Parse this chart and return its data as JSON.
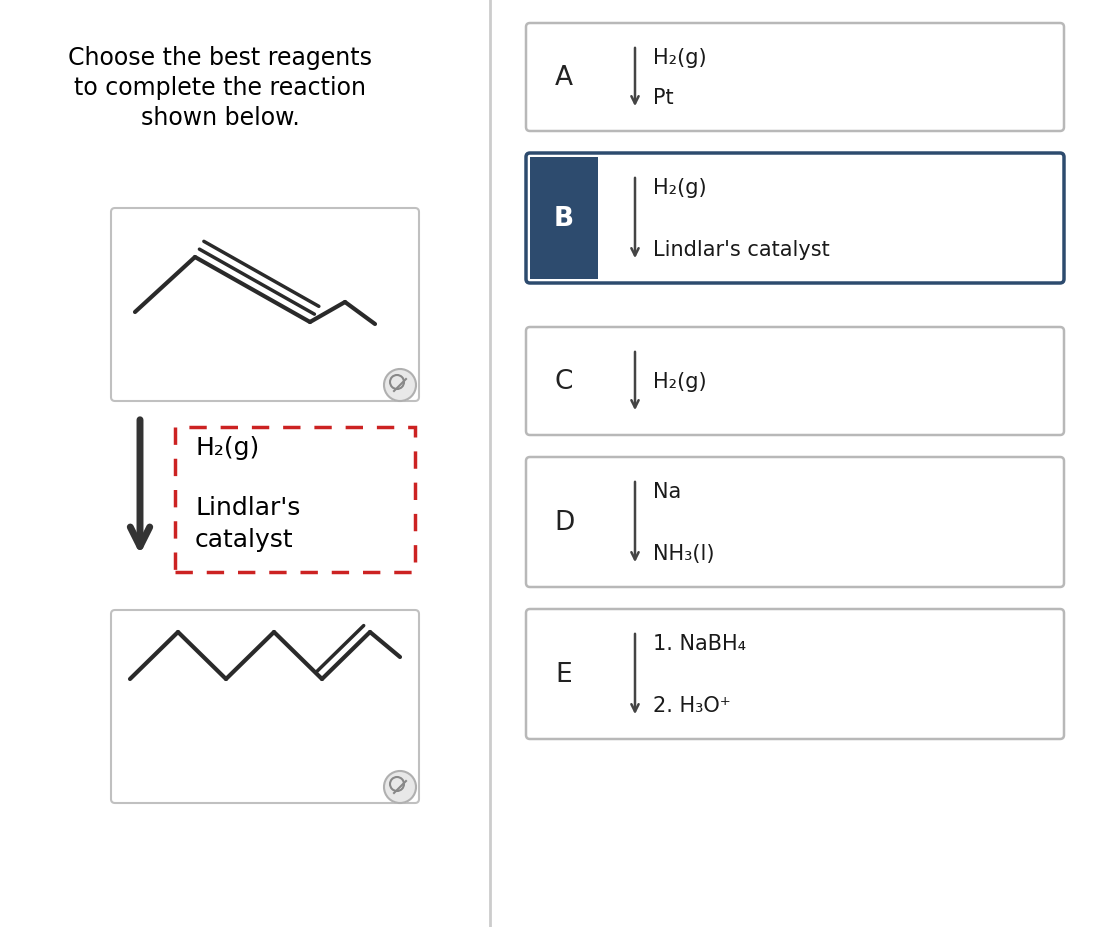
{
  "title_line1": "Choose the best reagents",
  "title_line2": "to complete the reaction",
  "title_line3": "shown below.",
  "bg_color": "#ffffff",
  "dark_blue": "#2d4b6e",
  "dark_blue_border": "#2d4b6e",
  "gray_border": "#b0b0b0",
  "arrow_color": "#3a3a3a",
  "red_dashed": "#cc2222",
  "molecule_color": "#2a2a2a",
  "reagent_text_color": "#1a1a1a",
  "title_fontsize": 17,
  "label_fontsize": 19,
  "text_fontsize": 15,
  "options": [
    {
      "label": "A",
      "line1": "H₂(g)",
      "line2": "Pt",
      "selected": false
    },
    {
      "label": "B",
      "line1": "H₂(g)",
      "line2": "Lindlar's catalyst",
      "selected": true
    },
    {
      "label": "C",
      "line1": "H₂(g)",
      "line2": "",
      "selected": false
    },
    {
      "label": "D",
      "line1": "Na",
      "line2": "NH₃(l)",
      "selected": false
    },
    {
      "label": "E",
      "line1": "1. NaBH₄",
      "line2": "2. H₃O⁺",
      "selected": false
    }
  ]
}
